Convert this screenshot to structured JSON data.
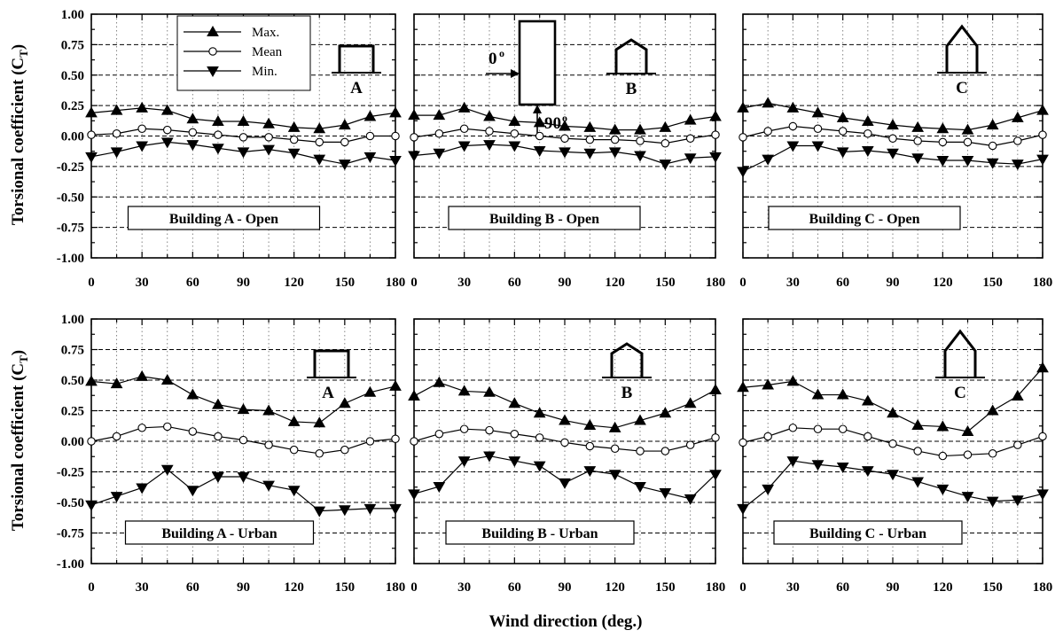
{
  "figure": {
    "y_label": "Torsional coefficient (C",
    "y_label_sub": "T",
    "y_label_close": ")",
    "x_label": "Wind direction (deg.)"
  },
  "legend": [
    {
      "label": "Max.",
      "marker": "triangle-up",
      "fill": "#000000"
    },
    {
      "label": "Mean",
      "marker": "circle",
      "fill": "#ffffff"
    },
    {
      "label": "Min.",
      "marker": "triangle-down",
      "fill": "#000000"
    }
  ],
  "inset_orientation": {
    "zero_label": "0",
    "ninety_label": "90",
    "degree_mark": "o"
  },
  "chart_data": [
    {
      "type": "line",
      "title": "Building A - Open",
      "building_letter": "A",
      "roof": "flat",
      "x": [
        0,
        15,
        30,
        45,
        60,
        75,
        90,
        105,
        120,
        135,
        150,
        165,
        180
      ],
      "x_ticks": [
        "0",
        "30",
        "60",
        "90",
        "120",
        "150",
        "180"
      ],
      "y_ticks": [
        "1.00",
        "0.75",
        "0.50",
        "0.25",
        "0.00",
        "-0.25",
        "-0.50",
        "-0.75",
        "-1.00"
      ],
      "ylim": [
        -1.0,
        1.0
      ],
      "xlim": [
        0,
        180
      ],
      "grid": "dashed-horizontal-dotted-vertical",
      "series": [
        {
          "name": "Max.",
          "values": [
            0.19,
            0.21,
            0.23,
            0.21,
            0.14,
            0.12,
            0.12,
            0.1,
            0.07,
            0.06,
            0.09,
            0.16,
            0.19
          ]
        },
        {
          "name": "Mean",
          "values": [
            0.01,
            0.02,
            0.06,
            0.05,
            0.03,
            0.01,
            -0.01,
            -0.01,
            -0.03,
            -0.05,
            -0.05,
            0.0,
            0.0
          ]
        },
        {
          "name": "Min.",
          "values": [
            -0.17,
            -0.13,
            -0.08,
            -0.05,
            -0.07,
            -0.1,
            -0.13,
            -0.11,
            -0.14,
            -0.19,
            -0.23,
            -0.17,
            -0.2
          ]
        }
      ]
    },
    {
      "type": "line",
      "title": "Building B - Open",
      "building_letter": "B",
      "roof": "gable-low",
      "x": [
        0,
        15,
        30,
        45,
        60,
        75,
        90,
        105,
        120,
        135,
        150,
        165,
        180
      ],
      "x_ticks": [
        "0",
        "30",
        "60",
        "90",
        "120",
        "150",
        "180"
      ],
      "y_ticks": [
        "1.00",
        "0.75",
        "0.50",
        "0.25",
        "0.00",
        "-0.25",
        "-0.50",
        "-0.75",
        "-1.00"
      ],
      "ylim": [
        -1.0,
        1.0
      ],
      "xlim": [
        0,
        180
      ],
      "grid": "dashed-horizontal-dotted-vertical",
      "series": [
        {
          "name": "Max.",
          "values": [
            0.17,
            0.17,
            0.23,
            0.16,
            0.12,
            0.11,
            0.08,
            0.07,
            0.05,
            0.05,
            0.07,
            0.13,
            0.16
          ]
        },
        {
          "name": "Mean",
          "values": [
            -0.01,
            0.02,
            0.06,
            0.04,
            0.02,
            0.0,
            -0.02,
            -0.03,
            -0.03,
            -0.04,
            -0.06,
            -0.02,
            0.01
          ]
        },
        {
          "name": "Min.",
          "values": [
            -0.16,
            -0.14,
            -0.08,
            -0.07,
            -0.08,
            -0.12,
            -0.13,
            -0.14,
            -0.13,
            -0.16,
            -0.23,
            -0.18,
            -0.17
          ]
        }
      ]
    },
    {
      "type": "line",
      "title": "Building C - Open",
      "building_letter": "C",
      "roof": "gable-high",
      "x": [
        0,
        15,
        30,
        45,
        60,
        75,
        90,
        105,
        120,
        135,
        150,
        165,
        180
      ],
      "x_ticks": [
        "0",
        "30",
        "60",
        "90",
        "120",
        "150",
        "180"
      ],
      "y_ticks": [
        "1.00",
        "0.75",
        "0.50",
        "0.25",
        "0.00",
        "-0.25",
        "-0.50",
        "-0.75",
        "-1.00"
      ],
      "ylim": [
        -1.0,
        1.0
      ],
      "xlim": [
        0,
        180
      ],
      "grid": "dashed-horizontal-dotted-vertical",
      "series": [
        {
          "name": "Max.",
          "values": [
            0.23,
            0.27,
            0.23,
            0.19,
            0.15,
            0.12,
            0.09,
            0.07,
            0.06,
            0.05,
            0.09,
            0.15,
            0.21
          ]
        },
        {
          "name": "Mean",
          "values": [
            -0.01,
            0.04,
            0.08,
            0.06,
            0.04,
            0.02,
            -0.02,
            -0.04,
            -0.05,
            -0.05,
            -0.08,
            -0.04,
            0.01
          ]
        },
        {
          "name": "Min.",
          "values": [
            -0.29,
            -0.19,
            -0.08,
            -0.08,
            -0.13,
            -0.12,
            -0.14,
            -0.18,
            -0.2,
            -0.2,
            -0.22,
            -0.23,
            -0.19
          ]
        }
      ]
    },
    {
      "type": "line",
      "title": "Building A - Urban",
      "building_letter": "A",
      "roof": "flat",
      "x": [
        0,
        15,
        30,
        45,
        60,
        75,
        90,
        105,
        120,
        135,
        150,
        165,
        180
      ],
      "x_ticks": [
        "0",
        "30",
        "60",
        "90",
        "120",
        "150",
        "180"
      ],
      "y_ticks": [
        "1.00",
        "0.75",
        "0.50",
        "0.25",
        "0.00",
        "-0.25",
        "-0.50",
        "-0.75",
        "-1.00"
      ],
      "ylim": [
        -1.0,
        1.0
      ],
      "xlim": [
        0,
        180
      ],
      "grid": "dashed-horizontal-dotted-vertical",
      "series": [
        {
          "name": "Max.",
          "values": [
            0.49,
            0.47,
            0.53,
            0.5,
            0.38,
            0.3,
            0.26,
            0.25,
            0.16,
            0.15,
            0.31,
            0.4,
            0.45
          ]
        },
        {
          "name": "Mean",
          "values": [
            0.0,
            0.04,
            0.11,
            0.12,
            0.08,
            0.04,
            0.01,
            -0.03,
            -0.07,
            -0.1,
            -0.07,
            0.0,
            0.02
          ]
        },
        {
          "name": "Min.",
          "values": [
            -0.52,
            -0.45,
            -0.38,
            -0.23,
            -0.4,
            -0.29,
            -0.29,
            -0.36,
            -0.4,
            -0.57,
            -0.56,
            -0.55,
            -0.55
          ]
        }
      ]
    },
    {
      "type": "line",
      "title": "Building B - Urban",
      "building_letter": "B",
      "roof": "gable-low",
      "x": [
        0,
        15,
        30,
        45,
        60,
        75,
        90,
        105,
        120,
        135,
        150,
        165,
        180
      ],
      "x_ticks": [
        "0",
        "30",
        "60",
        "90",
        "120",
        "150",
        "180"
      ],
      "y_ticks": [
        "1.00",
        "0.75",
        "0.50",
        "0.25",
        "0.00",
        "-0.25",
        "-0.50",
        "-0.75",
        "-1.00"
      ],
      "ylim": [
        -1.0,
        1.0
      ],
      "xlim": [
        0,
        180
      ],
      "grid": "dashed-horizontal-dotted-vertical",
      "series": [
        {
          "name": "Max.",
          "values": [
            0.37,
            0.48,
            0.41,
            0.4,
            0.31,
            0.23,
            0.17,
            0.13,
            0.11,
            0.17,
            0.23,
            0.31,
            0.42
          ]
        },
        {
          "name": "Mean",
          "values": [
            0.0,
            0.06,
            0.1,
            0.09,
            0.06,
            0.03,
            -0.01,
            -0.04,
            -0.06,
            -0.08,
            -0.08,
            -0.03,
            0.03
          ]
        },
        {
          "name": "Min.",
          "values": [
            -0.43,
            -0.37,
            -0.16,
            -0.12,
            -0.16,
            -0.2,
            -0.34,
            -0.24,
            -0.27,
            -0.37,
            -0.42,
            -0.47,
            -0.27
          ]
        }
      ]
    },
    {
      "type": "line",
      "title": "Building C - Urban",
      "building_letter": "C",
      "roof": "gable-high",
      "x": [
        0,
        15,
        30,
        45,
        60,
        75,
        90,
        105,
        120,
        135,
        150,
        165,
        180
      ],
      "x_ticks": [
        "0",
        "30",
        "60",
        "90",
        "120",
        "150",
        "180"
      ],
      "y_ticks": [
        "1.00",
        "0.75",
        "0.50",
        "0.25",
        "0.00",
        "-0.25",
        "-0.50",
        "-0.75",
        "-1.00"
      ],
      "ylim": [
        -1.0,
        1.0
      ],
      "xlim": [
        0,
        180
      ],
      "grid": "dashed-horizontal-dotted-vertical",
      "series": [
        {
          "name": "Max.",
          "values": [
            0.44,
            0.46,
            0.49,
            0.38,
            0.38,
            0.33,
            0.23,
            0.13,
            0.12,
            0.08,
            0.25,
            0.37,
            0.6
          ]
        },
        {
          "name": "Mean",
          "values": [
            -0.01,
            0.04,
            0.11,
            0.1,
            0.1,
            0.04,
            -0.02,
            -0.08,
            -0.12,
            -0.11,
            -0.1,
            -0.03,
            0.04
          ]
        },
        {
          "name": "Min.",
          "values": [
            -0.55,
            -0.39,
            -0.16,
            -0.19,
            -0.21,
            -0.24,
            -0.27,
            -0.33,
            -0.39,
            -0.45,
            -0.49,
            -0.48,
            -0.43
          ]
        }
      ]
    }
  ]
}
